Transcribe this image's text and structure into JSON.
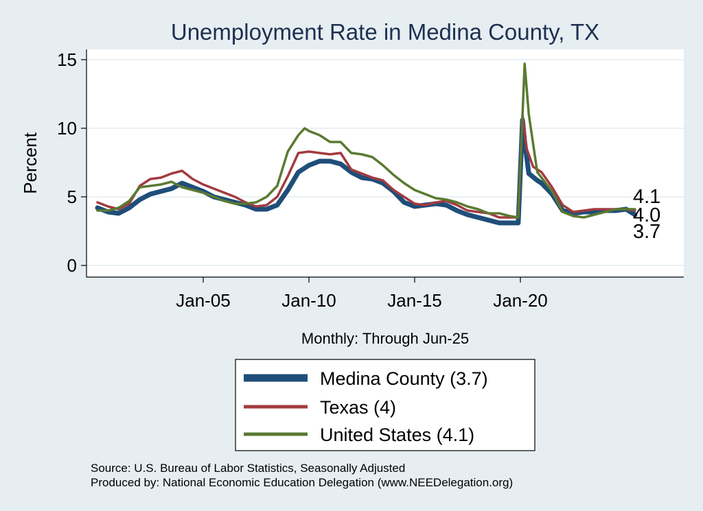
{
  "chart_data": {
    "type": "line",
    "title": "Unemployment Rate in Medina  County, TX",
    "ylabel": "Percent",
    "xnote": "Monthly: Through Jun-25",
    "ylim": [
      0,
      15.5
    ],
    "yticks": [
      0,
      5,
      10,
      15
    ],
    "xticks": [
      "Jan-05",
      "Jan-10",
      "Jan-15",
      "Jan-20"
    ],
    "grid": true,
    "legend_position": "bottom-center",
    "series": [
      {
        "name": "Medina  County (3.7)",
        "color": "#1f4e79",
        "end_label": "3.7",
        "points": [
          [
            2000.0,
            4.2
          ],
          [
            2000.5,
            3.9
          ],
          [
            2001.0,
            3.8
          ],
          [
            2001.5,
            4.2
          ],
          [
            2002.0,
            4.8
          ],
          [
            2002.5,
            5.2
          ],
          [
            2003.0,
            5.4
          ],
          [
            2003.5,
            5.6
          ],
          [
            2004.0,
            6.0
          ],
          [
            2004.5,
            5.7
          ],
          [
            2005.0,
            5.4
          ],
          [
            2005.5,
            5.0
          ],
          [
            2006.0,
            4.8
          ],
          [
            2006.5,
            4.6
          ],
          [
            2007.0,
            4.4
          ],
          [
            2007.5,
            4.1
          ],
          [
            2008.0,
            4.1
          ],
          [
            2008.5,
            4.4
          ],
          [
            2009.0,
            5.5
          ],
          [
            2009.5,
            6.8
          ],
          [
            2010.0,
            7.3
          ],
          [
            2010.5,
            7.6
          ],
          [
            2011.0,
            7.6
          ],
          [
            2011.5,
            7.4
          ],
          [
            2012.0,
            6.8
          ],
          [
            2012.5,
            6.4
          ],
          [
            2013.0,
            6.3
          ],
          [
            2013.5,
            6.0
          ],
          [
            2014.0,
            5.4
          ],
          [
            2014.5,
            4.6
          ],
          [
            2015.0,
            4.3
          ],
          [
            2015.5,
            4.4
          ],
          [
            2016.0,
            4.5
          ],
          [
            2016.5,
            4.4
          ],
          [
            2017.0,
            4.0
          ],
          [
            2017.5,
            3.7
          ],
          [
            2018.0,
            3.5
          ],
          [
            2018.5,
            3.3
          ],
          [
            2019.0,
            3.1
          ],
          [
            2019.5,
            3.1
          ],
          [
            2019.9,
            3.1
          ],
          [
            2020.1,
            10.6
          ],
          [
            2020.2,
            9.0
          ],
          [
            2020.4,
            6.7
          ],
          [
            2020.8,
            6.2
          ],
          [
            2021.0,
            6.0
          ],
          [
            2021.5,
            5.2
          ],
          [
            2022.0,
            4.0
          ],
          [
            2022.5,
            3.8
          ],
          [
            2023.0,
            3.9
          ],
          [
            2023.5,
            3.9
          ],
          [
            2024.0,
            4.0
          ],
          [
            2024.5,
            4.0
          ],
          [
            2025.0,
            4.1
          ],
          [
            2025.42,
            3.7
          ]
        ]
      },
      {
        "name": "Texas (4)",
        "color": "#a33a3f",
        "end_label": "4.0",
        "points": [
          [
            2000.0,
            4.6
          ],
          [
            2000.5,
            4.3
          ],
          [
            2001.0,
            4.1
          ],
          [
            2001.5,
            4.5
          ],
          [
            2002.0,
            5.8
          ],
          [
            2002.5,
            6.3
          ],
          [
            2003.0,
            6.4
          ],
          [
            2003.5,
            6.7
          ],
          [
            2004.0,
            6.9
          ],
          [
            2004.5,
            6.3
          ],
          [
            2005.0,
            5.9
          ],
          [
            2005.5,
            5.6
          ],
          [
            2006.0,
            5.3
          ],
          [
            2006.5,
            5.0
          ],
          [
            2007.0,
            4.6
          ],
          [
            2007.5,
            4.3
          ],
          [
            2008.0,
            4.4
          ],
          [
            2008.5,
            5.0
          ],
          [
            2009.0,
            6.5
          ],
          [
            2009.5,
            8.2
          ],
          [
            2010.0,
            8.3
          ],
          [
            2010.5,
            8.2
          ],
          [
            2011.0,
            8.1
          ],
          [
            2011.5,
            8.2
          ],
          [
            2012.0,
            7.0
          ],
          [
            2012.5,
            6.7
          ],
          [
            2013.0,
            6.4
          ],
          [
            2013.5,
            6.2
          ],
          [
            2014.0,
            5.5
          ],
          [
            2014.5,
            5.0
          ],
          [
            2015.0,
            4.5
          ],
          [
            2015.5,
            4.4
          ],
          [
            2016.0,
            4.6
          ],
          [
            2016.5,
            4.7
          ],
          [
            2017.0,
            4.4
          ],
          [
            2017.5,
            4.0
          ],
          [
            2018.0,
            3.9
          ],
          [
            2018.5,
            3.8
          ],
          [
            2019.0,
            3.5
          ],
          [
            2019.5,
            3.5
          ],
          [
            2019.9,
            3.5
          ],
          [
            2020.1,
            11.0
          ],
          [
            2020.3,
            8.5
          ],
          [
            2020.6,
            7.2
          ],
          [
            2021.0,
            6.8
          ],
          [
            2021.5,
            5.7
          ],
          [
            2022.0,
            4.4
          ],
          [
            2022.5,
            3.9
          ],
          [
            2023.0,
            4.0
          ],
          [
            2023.5,
            4.1
          ],
          [
            2024.0,
            4.1
          ],
          [
            2024.5,
            4.1
          ],
          [
            2025.0,
            4.1
          ],
          [
            2025.42,
            4.0
          ]
        ]
      },
      {
        "name": "United States (4.1)",
        "color": "#5a7a31",
        "end_label": "4.1",
        "points": [
          [
            2000.0,
            4.0
          ],
          [
            2000.5,
            4.0
          ],
          [
            2001.0,
            4.2
          ],
          [
            2001.5,
            4.7
          ],
          [
            2002.0,
            5.7
          ],
          [
            2002.5,
            5.8
          ],
          [
            2003.0,
            5.9
          ],
          [
            2003.5,
            6.1
          ],
          [
            2004.0,
            5.7
          ],
          [
            2004.5,
            5.5
          ],
          [
            2005.0,
            5.3
          ],
          [
            2005.5,
            5.0
          ],
          [
            2006.0,
            4.7
          ],
          [
            2006.5,
            4.5
          ],
          [
            2007.0,
            4.5
          ],
          [
            2007.5,
            4.6
          ],
          [
            2008.0,
            5.0
          ],
          [
            2008.5,
            5.8
          ],
          [
            2009.0,
            8.3
          ],
          [
            2009.5,
            9.5
          ],
          [
            2009.8,
            10.0
          ],
          [
            2010.0,
            9.8
          ],
          [
            2010.5,
            9.5
          ],
          [
            2011.0,
            9.0
          ],
          [
            2011.5,
            9.0
          ],
          [
            2012.0,
            8.2
          ],
          [
            2012.5,
            8.1
          ],
          [
            2013.0,
            7.9
          ],
          [
            2013.5,
            7.3
          ],
          [
            2014.0,
            6.6
          ],
          [
            2014.5,
            6.0
          ],
          [
            2015.0,
            5.5
          ],
          [
            2015.5,
            5.2
          ],
          [
            2016.0,
            4.9
          ],
          [
            2016.5,
            4.8
          ],
          [
            2017.0,
            4.6
          ],
          [
            2017.5,
            4.3
          ],
          [
            2018.0,
            4.1
          ],
          [
            2018.5,
            3.8
          ],
          [
            2019.0,
            3.8
          ],
          [
            2019.5,
            3.6
          ],
          [
            2019.9,
            3.5
          ],
          [
            2020.2,
            14.7
          ],
          [
            2020.4,
            11.0
          ],
          [
            2020.8,
            6.8
          ],
          [
            2021.0,
            6.4
          ],
          [
            2021.5,
            5.4
          ],
          [
            2022.0,
            3.9
          ],
          [
            2022.5,
            3.6
          ],
          [
            2023.0,
            3.5
          ],
          [
            2023.5,
            3.7
          ],
          [
            2024.0,
            3.9
          ],
          [
            2024.5,
            4.1
          ],
          [
            2025.0,
            4.1
          ],
          [
            2025.42,
            4.1
          ]
        ]
      }
    ]
  },
  "source_line_1": "Source: U.S. Bureau of Labor Statistics, Seasonally Adjusted",
  "source_line_2": "Produced by: National Economic Education Delegation (www.NEEDelegation.org)"
}
